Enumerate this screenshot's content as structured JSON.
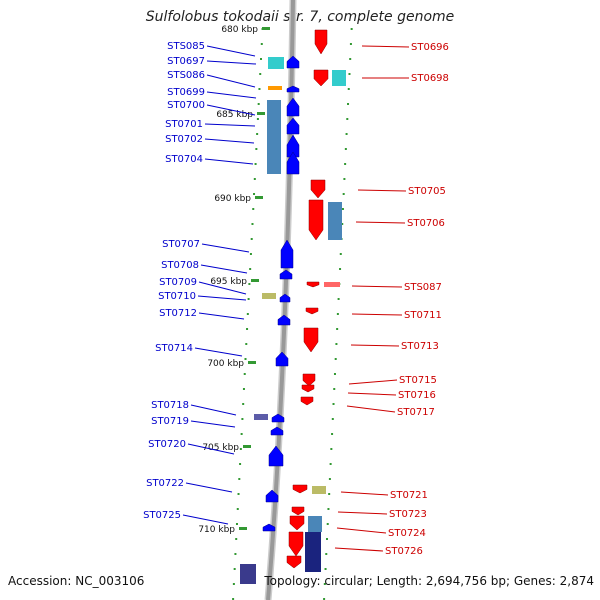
{
  "title": "Sulfolobus tokodaii str. 7, complete genome",
  "footer": {
    "accession": "Accession: NC_003106",
    "summary": "Topology: circular; Length: 2,694,756 bp; Genes: 2,874"
  },
  "scale_labels": [
    "680 kbp",
    "685 kbp",
    "690 kbp",
    "695 kbp",
    "700 kbp",
    "705 kbp",
    "710 kbp"
  ],
  "colors": {
    "forward_cds": "#0000ff",
    "reverse_cds": "#ff0000",
    "forward_label": "#0000cc",
    "reverse_label": "#cc0000",
    "backbone": "#999999",
    "tick": "#339933",
    "feature_cyan": "#33cccc",
    "feature_steel": "#4a86b8",
    "feature_navy": "#1a237e",
    "feature_orange": "#ff9900",
    "feature_olive": "#bbbb66"
  },
  "forward_genes": [
    "STS085",
    "ST0697",
    "STS086",
    "ST0699",
    "ST0700",
    "ST0701",
    "ST0702",
    "ST0704",
    "ST0707",
    "ST0708",
    "ST0709",
    "ST0710",
    "ST0712",
    "ST0714",
    "ST0718",
    "ST0719",
    "ST0720",
    "ST0722",
    "ST0725"
  ],
  "reverse_genes": [
    "ST0696",
    "ST0698",
    "ST0705",
    "ST0706",
    "STS087",
    "ST0711",
    "ST0713",
    "ST0715",
    "ST0716",
    "ST0717",
    "ST0721",
    "ST0723",
    "ST0724",
    "ST0726"
  ]
}
